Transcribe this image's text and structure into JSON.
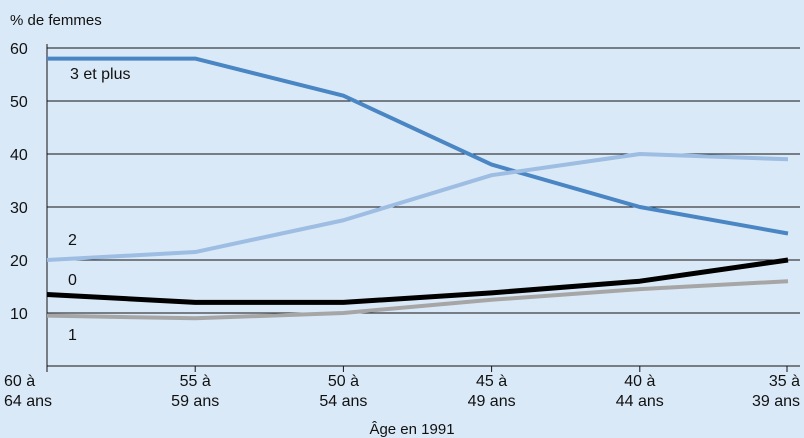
{
  "chart_data": {
    "type": "line",
    "ylabel": "% de femmes",
    "xlabel": "Âge en 1991",
    "ylim": [
      0,
      60
    ],
    "yticks": [
      10,
      20,
      30,
      40,
      50,
      60
    ],
    "grid": true,
    "categories": [
      [
        "60 à",
        "64 ans"
      ],
      [
        "55 à",
        "59 ans"
      ],
      [
        "50 à",
        "54 ans"
      ],
      [
        "45 à",
        "49 ans"
      ],
      [
        "40 à",
        "44 ans"
      ],
      [
        "35 à",
        "39 ans"
      ]
    ],
    "series": [
      {
        "name": "3 et plus",
        "color": "#4a86c4",
        "values": [
          58,
          58,
          51,
          38,
          30,
          25
        ]
      },
      {
        "name": "2",
        "color": "#9dbde2",
        "values": [
          20,
          21.5,
          27.5,
          36,
          40,
          39
        ]
      },
      {
        "name": "0",
        "color": "#000000",
        "values": [
          13.5,
          12,
          12,
          13.8,
          16,
          20
        ]
      },
      {
        "name": "1",
        "color": "#a6a6a6",
        "values": [
          9.5,
          9,
          10,
          12.5,
          14.5,
          16
        ]
      }
    ]
  }
}
